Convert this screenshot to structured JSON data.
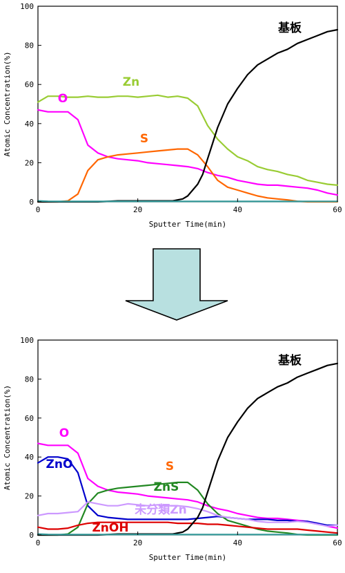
{
  "chart_data": [
    {
      "type": "line",
      "xlabel": "Sputter Time(min)",
      "ylabel": "Atomic Concentration(%)",
      "xlim": [
        0,
        60
      ],
      "ylim": [
        0,
        100
      ],
      "xticks": [
        "0",
        "20",
        "40",
        "60"
      ],
      "yticks": [
        "0",
        "20",
        "40",
        "60",
        "80",
        "100"
      ],
      "grid": false,
      "series": [
        {
          "name": "Zn",
          "color": "#99cc33",
          "x": [
            0,
            2,
            4,
            6,
            8,
            10,
            12,
            14,
            16,
            18,
            20,
            22,
            24,
            26,
            28,
            30,
            32,
            34,
            36,
            38,
            40,
            42,
            44,
            46,
            48,
            50,
            52,
            54,
            56,
            58,
            60
          ],
          "values": [
            51,
            54,
            54,
            53.5,
            53.5,
            54,
            53.5,
            53.5,
            54,
            54,
            53.5,
            54,
            54.5,
            53.5,
            54,
            53,
            49,
            39,
            32,
            27,
            23,
            21,
            18,
            16.5,
            15.5,
            14,
            13,
            11,
            10,
            9,
            8.5
          ]
        },
        {
          "name": "O",
          "color": "#ff00ff",
          "x": [
            0,
            2,
            4,
            6,
            8,
            10,
            12,
            14,
            16,
            18,
            20,
            22,
            24,
            26,
            28,
            30,
            32,
            34,
            36,
            38,
            40,
            42,
            44,
            46,
            48,
            50,
            52,
            54,
            56,
            58,
            60
          ],
          "values": [
            47,
            46,
            46,
            46,
            42,
            29,
            25,
            23,
            22,
            21.5,
            21,
            20,
            19.5,
            19,
            18.5,
            18,
            17,
            15,
            13.5,
            12.5,
            11,
            10,
            9,
            8.5,
            8.5,
            8,
            7.5,
            7,
            6,
            4.5,
            3.5
          ]
        },
        {
          "name": "S",
          "color": "#ff6600",
          "x": [
            0,
            4,
            6,
            8,
            10,
            12,
            14,
            16,
            18,
            20,
            22,
            24,
            26,
            28,
            30,
            32,
            34,
            36,
            38,
            40,
            42,
            44,
            46,
            48,
            50,
            52,
            54,
            56,
            58,
            60
          ],
          "values": [
            0,
            0,
            0.5,
            4,
            16,
            21.5,
            23,
            24,
            24.5,
            25,
            25.5,
            26,
            26.5,
            27,
            27,
            24,
            18,
            11,
            7.5,
            6,
            4.5,
            3,
            2,
            1.5,
            1,
            0.3,
            0,
            0,
            0,
            0
          ]
        },
        {
          "name": "基板",
          "color": "#000000",
          "x": [
            0,
            4,
            8,
            12,
            16,
            20,
            24,
            27,
            29,
            30,
            32,
            33,
            34,
            35,
            36,
            38,
            40,
            42,
            44,
            46,
            48,
            50,
            52,
            54,
            56,
            58,
            60
          ],
          "values": [
            0,
            0,
            0,
            0,
            0.5,
            0.5,
            0.5,
            0.5,
            1.5,
            3,
            9,
            14,
            22,
            30,
            38,
            50,
            58,
            65,
            70,
            73,
            76,
            78,
            81,
            83,
            85,
            87,
            88
          ]
        },
        {
          "name": "",
          "color": "#339999",
          "x": [
            0,
            2,
            4,
            6,
            60
          ],
          "values": [
            0.5,
            0.3,
            0.2,
            0.2,
            0.2
          ]
        }
      ]
    },
    {
      "type": "line",
      "xlabel": "Sputter Time(min)",
      "ylabel": "Atomic Concentration(%)",
      "xlim": [
        0,
        60
      ],
      "ylim": [
        0,
        100
      ],
      "xticks": [
        "0",
        "20",
        "40",
        "60"
      ],
      "yticks": [
        "0",
        "20",
        "40",
        "60",
        "80",
        "100"
      ],
      "grid": false,
      "series": [
        {
          "name": "O",
          "color": "#ff00ff",
          "x": [
            0,
            2,
            4,
            6,
            8,
            10,
            12,
            14,
            16,
            18,
            20,
            22,
            24,
            26,
            28,
            30,
            32,
            34,
            36,
            38,
            40,
            42,
            44,
            46,
            48,
            50,
            52,
            54,
            56,
            58,
            60
          ],
          "values": [
            47,
            46,
            46,
            46,
            42,
            29,
            25,
            23,
            22,
            21.5,
            21,
            20,
            19.5,
            19,
            18.5,
            18,
            17,
            15,
            13.5,
            12.5,
            11,
            10,
            9,
            8.5,
            8.5,
            8,
            7.5,
            7,
            6,
            4.5,
            3.5
          ]
        },
        {
          "name": "ZnO",
          "color": "#0000cc",
          "x": [
            0,
            2,
            4,
            6,
            8,
            10,
            12,
            14,
            16,
            18,
            20,
            22,
            24,
            26,
            28,
            30,
            32,
            34,
            36,
            38,
            40,
            42,
            44,
            46,
            48,
            50,
            52,
            54,
            56,
            58,
            60
          ],
          "values": [
            37,
            40,
            40,
            39,
            32,
            15,
            10,
            9,
            8.5,
            8,
            8,
            8,
            8,
            8,
            8,
            8,
            8.5,
            9,
            9.5,
            9,
            8.5,
            8,
            8,
            8,
            7.5,
            7.5,
            7,
            7,
            6,
            5,
            5
          ]
        },
        {
          "name": "ZnS",
          "color": "#228822",
          "x": [
            0,
            4,
            6,
            8,
            10,
            12,
            14,
            16,
            18,
            20,
            22,
            24,
            26,
            28,
            30,
            32,
            34,
            36,
            38,
            40,
            42,
            44,
            46,
            48,
            50,
            52,
            54,
            56,
            58,
            60
          ],
          "values": [
            0,
            0,
            0.5,
            4,
            16,
            21.5,
            23,
            24,
            24.5,
            25,
            25.5,
            26,
            26.5,
            27,
            27,
            23,
            16,
            11,
            7.5,
            6,
            4.5,
            3,
            2,
            1.5,
            1,
            0.3,
            0,
            0,
            0,
            0
          ]
        },
        {
          "name": "未分類Zn",
          "color": "#cc99ff",
          "x": [
            0,
            2,
            4,
            6,
            8,
            10,
            12,
            14,
            16,
            18,
            20,
            22,
            24,
            26,
            28,
            30,
            32,
            34,
            36,
            38,
            40,
            42,
            44,
            46,
            48,
            50,
            52,
            54,
            56,
            58,
            60
          ],
          "values": [
            10,
            11,
            11,
            11.5,
            12,
            17,
            16,
            15,
            15,
            16,
            15.5,
            15,
            15.5,
            15,
            15,
            14.5,
            13.5,
            12,
            10,
            9,
            8.5,
            8,
            7,
            6.5,
            6.5,
            6.5,
            7,
            6.5,
            5.5,
            4.5,
            5
          ]
        },
        {
          "name": "ZnOH",
          "color": "#dd0000",
          "x": [
            0,
            2,
            4,
            6,
            8,
            10,
            12,
            14,
            16,
            18,
            20,
            22,
            24,
            26,
            28,
            30,
            32,
            34,
            36,
            38,
            40,
            42,
            44,
            46,
            48,
            50,
            52,
            54,
            56,
            58,
            60
          ],
          "values": [
            4,
            3,
            3,
            3.5,
            5,
            6,
            6.5,
            6.5,
            6.5,
            6.5,
            6.5,
            6.5,
            6.5,
            6.5,
            6,
            6,
            6,
            5.5,
            5.5,
            5,
            4.5,
            4,
            3.5,
            3,
            3,
            3,
            3,
            2.5,
            2,
            1.5,
            1
          ]
        },
        {
          "name": "S",
          "color": "#ff6600",
          "x": [],
          "values": []
        },
        {
          "name": "基板",
          "color": "#000000",
          "x": [
            0,
            4,
            8,
            12,
            16,
            20,
            24,
            27,
            29,
            30,
            32,
            33,
            34,
            35,
            36,
            38,
            40,
            42,
            44,
            46,
            48,
            50,
            52,
            54,
            56,
            58,
            60
          ],
          "values": [
            0,
            0,
            0,
            0,
            0.5,
            0.5,
            0.5,
            0.5,
            1.5,
            3,
            9,
            14,
            22,
            30,
            38,
            50,
            58,
            65,
            70,
            73,
            76,
            78,
            81,
            83,
            85,
            87,
            88
          ]
        },
        {
          "name": "",
          "color": "#339999",
          "x": [
            0,
            2,
            4,
            6,
            60
          ],
          "values": [
            0.5,
            0.3,
            0.2,
            0.2,
            0.2
          ]
        }
      ]
    }
  ],
  "arrow": {
    "fill": "#b8e0e0",
    "stroke": "#000000",
    "direction": "down"
  }
}
